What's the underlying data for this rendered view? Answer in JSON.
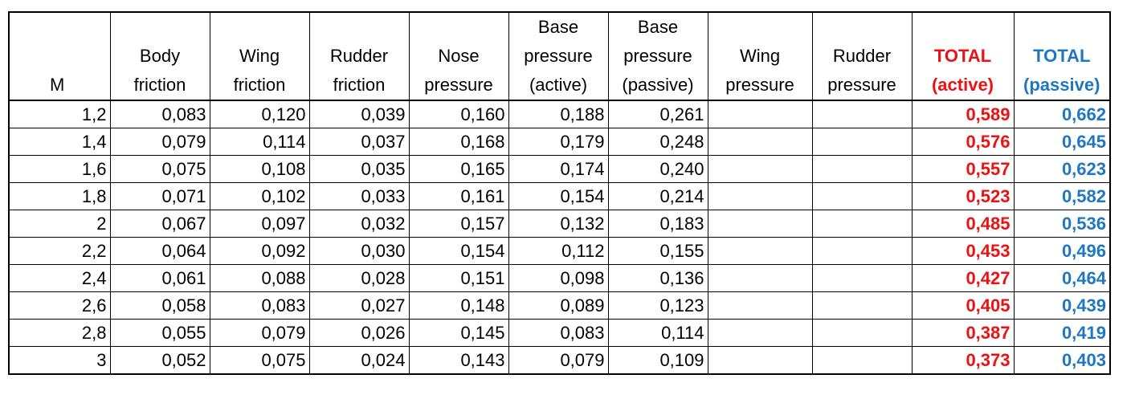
{
  "table": {
    "headers": [
      {
        "key": "m",
        "label": "M",
        "style": "normal"
      },
      {
        "key": "body_friction",
        "label": "Body\nfriction",
        "style": "normal"
      },
      {
        "key": "wing_friction",
        "label": "Wing\nfriction",
        "style": "normal"
      },
      {
        "key": "rudder_friction",
        "label": "Rudder\nfriction",
        "style": "normal"
      },
      {
        "key": "nose_pressure",
        "label": "Nose\npressure",
        "style": "normal"
      },
      {
        "key": "base_pressure_active",
        "label": "Base\npressure\n(active)",
        "style": "normal"
      },
      {
        "key": "base_pressure_passive",
        "label": "Base\npressure\n(passive)",
        "style": "normal"
      },
      {
        "key": "wing_pressure",
        "label": "Wing\npressure",
        "style": "normal"
      },
      {
        "key": "rudder_pressure",
        "label": "Rudder\npressure",
        "style": "normal"
      },
      {
        "key": "total_active",
        "label": "TOTAL\n(active)",
        "style": "total-active"
      },
      {
        "key": "total_passive",
        "label": "TOTAL\n(passive)",
        "style": "total-passive"
      }
    ],
    "rows": [
      [
        "1,2",
        "0,083",
        "0,120",
        "0,039",
        "0,160",
        "0,188",
        "0,261",
        "",
        "",
        "0,589",
        "0,662"
      ],
      [
        "1,4",
        "0,079",
        "0,114",
        "0,037",
        "0,168",
        "0,179",
        "0,248",
        "",
        "",
        "0,576",
        "0,645"
      ],
      [
        "1,6",
        "0,075",
        "0,108",
        "0,035",
        "0,165",
        "0,174",
        "0,240",
        "",
        "",
        "0,557",
        "0,623"
      ],
      [
        "1,8",
        "0,071",
        "0,102",
        "0,033",
        "0,161",
        "0,154",
        "0,214",
        "",
        "",
        "0,523",
        "0,582"
      ],
      [
        "2",
        "0,067",
        "0,097",
        "0,032",
        "0,157",
        "0,132",
        "0,183",
        "",
        "",
        "0,485",
        "0,536"
      ],
      [
        "2,2",
        "0,064",
        "0,092",
        "0,030",
        "0,154",
        "0,112",
        "0,155",
        "",
        "",
        "0,453",
        "0,496"
      ],
      [
        "2,4",
        "0,061",
        "0,088",
        "0,028",
        "0,151",
        "0,098",
        "0,136",
        "",
        "",
        "0,427",
        "0,464"
      ],
      [
        "2,6",
        "0,058",
        "0,083",
        "0,027",
        "0,148",
        "0,089",
        "0,123",
        "",
        "",
        "0,405",
        "0,439"
      ],
      [
        "2,8",
        "0,055",
        "0,079",
        "0,026",
        "0,145",
        "0,083",
        "0,114",
        "",
        "",
        "0,387",
        "0,419"
      ],
      [
        "3",
        "0,052",
        "0,075",
        "0,024",
        "0,143",
        "0,079",
        "0,109",
        "",
        "",
        "0,373",
        "0,403"
      ]
    ]
  },
  "colors": {
    "total_active": "#ee1111",
    "total_passive": "#1f77c2",
    "grid": "#000000"
  }
}
